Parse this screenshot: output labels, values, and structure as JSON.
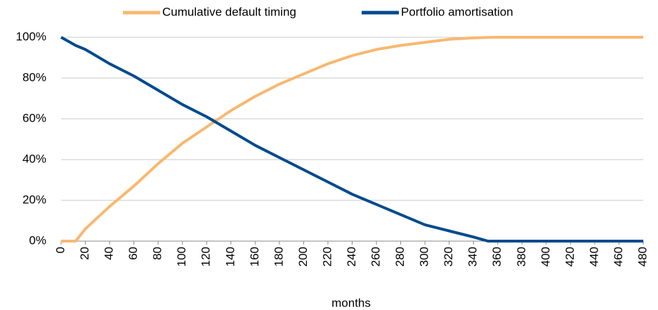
{
  "chart_data": {
    "type": "line",
    "xlabel": "months",
    "x": [
      0,
      12,
      20,
      40,
      60,
      80,
      100,
      120,
      140,
      160,
      180,
      200,
      220,
      240,
      260,
      280,
      300,
      320,
      340,
      352,
      360,
      380,
      400,
      420,
      440,
      460,
      480
    ],
    "series": [
      {
        "name": "Cumulative default timing",
        "color": "#f8b870",
        "values": [
          0,
          0,
          6,
          17,
          27,
          38,
          48,
          56,
          64,
          71,
          77,
          82,
          87,
          91,
          94,
          96,
          97.5,
          99,
          99.7,
          99.9,
          100,
          100,
          100,
          100,
          100,
          100,
          100
        ]
      },
      {
        "name": "Portfolio amortisation",
        "color": "#004a8f",
        "values": [
          100,
          96,
          94,
          87,
          81,
          74,
          67,
          61,
          54,
          47,
          41,
          35,
          29,
          23,
          18,
          13,
          8,
          5,
          2,
          0,
          0,
          0,
          0,
          0,
          0,
          0,
          0
        ]
      }
    ],
    "xlim": [
      0,
      480
    ],
    "xticks": [
      0,
      20,
      40,
      60,
      80,
      100,
      120,
      140,
      160,
      180,
      200,
      220,
      240,
      260,
      280,
      300,
      320,
      340,
      360,
      380,
      400,
      420,
      440,
      460,
      480
    ],
    "ylim": [
      0,
      100
    ],
    "yticks": [
      {
        "value": 0,
        "label": "0%"
      },
      {
        "value": 20,
        "label": "20%"
      },
      {
        "value": 40,
        "label": "40%"
      },
      {
        "value": 60,
        "label": "60%"
      },
      {
        "value": 80,
        "label": "80%"
      },
      {
        "value": 100,
        "label": "100%"
      }
    ],
    "grid": true,
    "legend": "top"
  }
}
